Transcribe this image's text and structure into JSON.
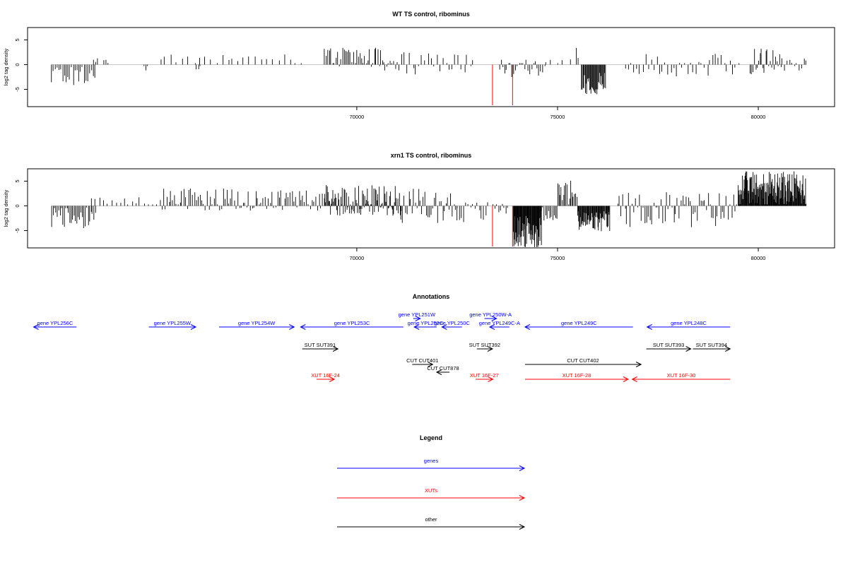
{
  "chart_data": [
    {
      "type": "bar",
      "title": "WT TS control, ribominus",
      "ylabel": "log2 tag density",
      "xlabel": "",
      "xlim": [
        61800,
        81900
      ],
      "ylim": [
        -8.5,
        7.5
      ],
      "x_ticks": [
        70000,
        75000,
        80000
      ],
      "y_ticks": [
        -5,
        0,
        5
      ],
      "grid": false,
      "colors": {
        "bars": "#000000",
        "highlight": "#ff0000",
        "baseline": "#b3b3b3"
      },
      "highlights": [
        {
          "x": 73380,
          "y": -8.8
        },
        {
          "x": 73880,
          "y": -8.8
        }
      ],
      "segments": [
        {
          "from": 62400,
          "to": 63500,
          "lo": -4.2,
          "hi": 0,
          "step": 45
        },
        {
          "from": 63450,
          "to": 63550,
          "lo": 0,
          "hi": 2.3,
          "step": 50
        },
        {
          "from": 63700,
          "to": 63800,
          "lo": 0,
          "hi": 1.2,
          "step": 50
        },
        {
          "from": 64700,
          "to": 64800,
          "lo": -2.6,
          "hi": 0,
          "step": 50
        },
        {
          "from": 65100,
          "to": 68600,
          "lo": 0,
          "hi": 2.4,
          "step": 140
        },
        {
          "from": 66000,
          "to": 66100,
          "lo": -1.5,
          "hi": 0,
          "step": 50
        },
        {
          "from": 69200,
          "to": 70700,
          "lo": -0.5,
          "hi": 3.5,
          "step": 40
        },
        {
          "from": 70700,
          "to": 71100,
          "lo": -1.5,
          "hi": 1,
          "step": 45
        },
        {
          "from": 71100,
          "to": 72900,
          "lo": -2.5,
          "hi": 2.5,
          "step": 75
        },
        {
          "from": 73550,
          "to": 74700,
          "lo": -2.5,
          "hi": 1,
          "step": 45
        },
        {
          "from": 74700,
          "to": 75300,
          "lo": 0,
          "hi": 1.3,
          "step": 150
        },
        {
          "from": 75480,
          "to": 75520,
          "lo": 0,
          "hi": 3.6,
          "step": 40
        },
        {
          "from": 75600,
          "to": 76200,
          "lo": -6,
          "hi": -1.5,
          "step": 18
        },
        {
          "from": 76700,
          "to": 79500,
          "lo": -2.8,
          "hi": 2.3,
          "step": 70
        },
        {
          "from": 79800,
          "to": 80600,
          "lo": -2,
          "hi": 3.6,
          "step": 35
        },
        {
          "from": 80600,
          "to": 81200,
          "lo": -1.5,
          "hi": 1.6,
          "step": 60
        }
      ]
    },
    {
      "type": "bar",
      "title": "xrn1 TS control, ribominus",
      "ylabel": "log2 tag density",
      "xlabel": "",
      "xlim": [
        61800,
        81900
      ],
      "ylim": [
        -8.5,
        7.5
      ],
      "x_ticks": [
        70000,
        75000,
        80000
      ],
      "y_ticks": [
        -5,
        0,
        5
      ],
      "grid": false,
      "colors": {
        "bars": "#000000",
        "highlight": "#ff0000",
        "baseline": "#b3b3b3"
      },
      "highlights": [
        {
          "x": 73380,
          "y": -8.8
        },
        {
          "x": 73880,
          "y": -8.8
        }
      ],
      "segments": [
        {
          "from": 62400,
          "to": 63500,
          "lo": -4.5,
          "hi": 0,
          "step": 35
        },
        {
          "from": 63400,
          "to": 65000,
          "lo": 0,
          "hi": 2,
          "step": 100
        },
        {
          "from": 65100,
          "to": 69200,
          "lo": -1,
          "hi": 3.5,
          "step": 45
        },
        {
          "from": 69200,
          "to": 71100,
          "lo": -2,
          "hi": 4.2,
          "step": 20
        },
        {
          "from": 71100,
          "to": 72500,
          "lo": -3.5,
          "hi": 3.5,
          "step": 40
        },
        {
          "from": 72500,
          "to": 73300,
          "lo": -3.5,
          "hi": 1,
          "step": 55
        },
        {
          "from": 73400,
          "to": 73800,
          "lo": -2,
          "hi": 1,
          "step": 45
        },
        {
          "from": 73900,
          "to": 74600,
          "lo": -8.5,
          "hi": -2,
          "step": 12
        },
        {
          "from": 74600,
          "to": 75000,
          "lo": -3,
          "hi": 0,
          "step": 35
        },
        {
          "from": 75000,
          "to": 75500,
          "lo": -0.5,
          "hi": 5.5,
          "step": 30
        },
        {
          "from": 75500,
          "to": 76300,
          "lo": -5.5,
          "hi": -1,
          "step": 14
        },
        {
          "from": 76500,
          "to": 79500,
          "lo": -4.5,
          "hi": 3,
          "step": 45
        },
        {
          "from": 79500,
          "to": 81200,
          "lo": 0,
          "hi": 7,
          "step": 12
        }
      ]
    }
  ],
  "annotations": {
    "title": "Annotations",
    "colors": {
      "gene": "#0000ff",
      "xut": "#ff0000",
      "other": "#000000"
    },
    "features": [
      {
        "label": "gene YPL256C",
        "kind": "gene",
        "dir": "left",
        "from": 61950,
        "to": 63020,
        "row": 0
      },
      {
        "label": "gene YPL255W",
        "kind": "gene",
        "dir": "right",
        "from": 64820,
        "to": 65990,
        "row": 0
      },
      {
        "label": "gene YPL254W",
        "kind": "gene",
        "dir": "right",
        "from": 66570,
        "to": 68440,
        "row": 0
      },
      {
        "label": "gene YPL253C",
        "kind": "gene",
        "dir": "left",
        "from": 68600,
        "to": 71160,
        "row": 1
      },
      {
        "label": "gene YPL251W",
        "kind": "gene",
        "dir": "right",
        "from": 71410,
        "to": 71580,
        "row": 2
      },
      {
        "label": "gene YPL252C",
        "kind": "gene",
        "dir": "left",
        "from": 71430,
        "to": 71990,
        "row": 1
      },
      {
        "label": "gene YPL250C",
        "kind": "gene",
        "dir": "left",
        "from": 72120,
        "to": 72620,
        "row": 1
      },
      {
        "label": "gene YPL250W-A",
        "kind": "gene",
        "dir": "right",
        "from": 73180,
        "to": 73480,
        "row": 2
      },
      {
        "label": "gene YPL249C-A",
        "kind": "gene",
        "dir": "left",
        "from": 73310,
        "to": 73800,
        "row": 1
      },
      {
        "label": "gene YPL249C",
        "kind": "gene",
        "dir": "left",
        "from": 74190,
        "to": 76880,
        "row": 1
      },
      {
        "label": "gene YPL248C",
        "kind": "gene",
        "dir": "left",
        "from": 77230,
        "to": 79300,
        "row": 1
      },
      {
        "label": "SUT SUT391",
        "kind": "other",
        "dir": "right",
        "from": 68640,
        "to": 69530,
        "row": 3
      },
      {
        "label": "SUT SUT392",
        "kind": "other",
        "dir": "right",
        "from": 72990,
        "to": 73380,
        "row": 3
      },
      {
        "label": "SUT SUT393",
        "kind": "other",
        "dir": "right",
        "from": 77210,
        "to": 78320,
        "row": 3
      },
      {
        "label": "SUT SUT394",
        "kind": "other",
        "dir": "right",
        "from": 78370,
        "to": 79300,
        "row": 3
      },
      {
        "label": "CUT CUT401",
        "kind": "other",
        "dir": "right",
        "from": 71380,
        "to": 71890,
        "row": 4
      },
      {
        "label": "CUT CUT402",
        "kind": "other",
        "dir": "right",
        "from": 74190,
        "to": 77080,
        "row": 4
      },
      {
        "label": "CUT CUT878",
        "kind": "other",
        "dir": "left",
        "from": 71990,
        "to": 72310,
        "row": 5
      },
      {
        "label": "XUT 16F-24",
        "kind": "xut",
        "dir": "right",
        "from": 69000,
        "to": 69440,
        "row": 6
      },
      {
        "label": "XUT 16F-27",
        "kind": "xut",
        "dir": "right",
        "from": 72960,
        "to": 73390,
        "row": 6
      },
      {
        "label": "XUT 16F-28",
        "kind": "xut",
        "dir": "right",
        "from": 74190,
        "to": 76760,
        "row": 6
      },
      {
        "label": "XUT 16F-30",
        "kind": "xut",
        "dir": "left",
        "from": 76860,
        "to": 79300,
        "row": 6
      }
    ]
  },
  "legend": {
    "title": "Legend",
    "items": [
      {
        "label": "genes",
        "color": "#0000ff"
      },
      {
        "label": "XUTs",
        "color": "#ff0000"
      },
      {
        "label": "other",
        "color": "#000000"
      }
    ]
  }
}
